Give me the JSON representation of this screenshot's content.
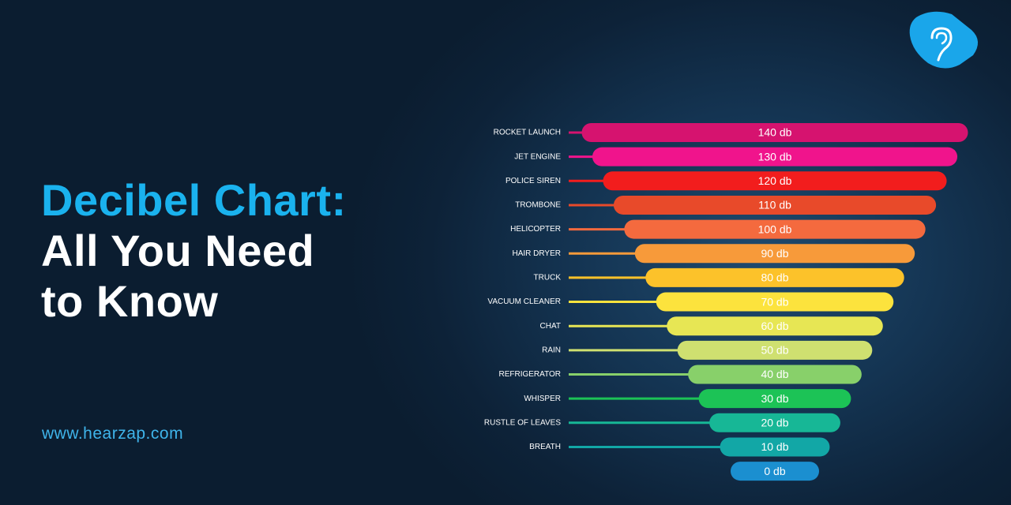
{
  "title_line1": "Decibel Chart:",
  "title_line2": "All You Need",
  "title_line3": "to Know",
  "website": "www.hearzap.com",
  "chart_data": {
    "type": "bar",
    "categories": [
      "ROCKET LAUNCH",
      "JET ENGINE",
      "POLICE SIREN",
      "TROMBONE",
      "HELICOPTER",
      "HAIR DRYER",
      "TRUCK",
      "VACUUM CLEANER",
      "CHAT",
      "RAIN",
      "REFRIGERATOR",
      "WHISPER",
      "RUSTLE OF LEAVES",
      "BREATH",
      null
    ],
    "values": [
      140,
      130,
      120,
      110,
      100,
      90,
      80,
      70,
      60,
      50,
      40,
      30,
      20,
      10,
      0
    ],
    "value_labels": [
      "140 db",
      "130 db",
      "120 db",
      "110 db",
      "100 db",
      "90 db",
      "80 db",
      "70 db",
      "60 db",
      "50 db",
      "40 db",
      "30 db",
      "20 db",
      "10 db",
      "0 db"
    ],
    "colors": [
      "#d6136f",
      "#f0148c",
      "#f21d1d",
      "#e84a2a",
      "#f46a3e",
      "#f79a3a",
      "#fcc22a",
      "#fce33d",
      "#e7e654",
      "#cfe070",
      "#88d06a",
      "#1cc356",
      "#17b796",
      "#12a7a6",
      "#1b8fd0"
    ]
  }
}
